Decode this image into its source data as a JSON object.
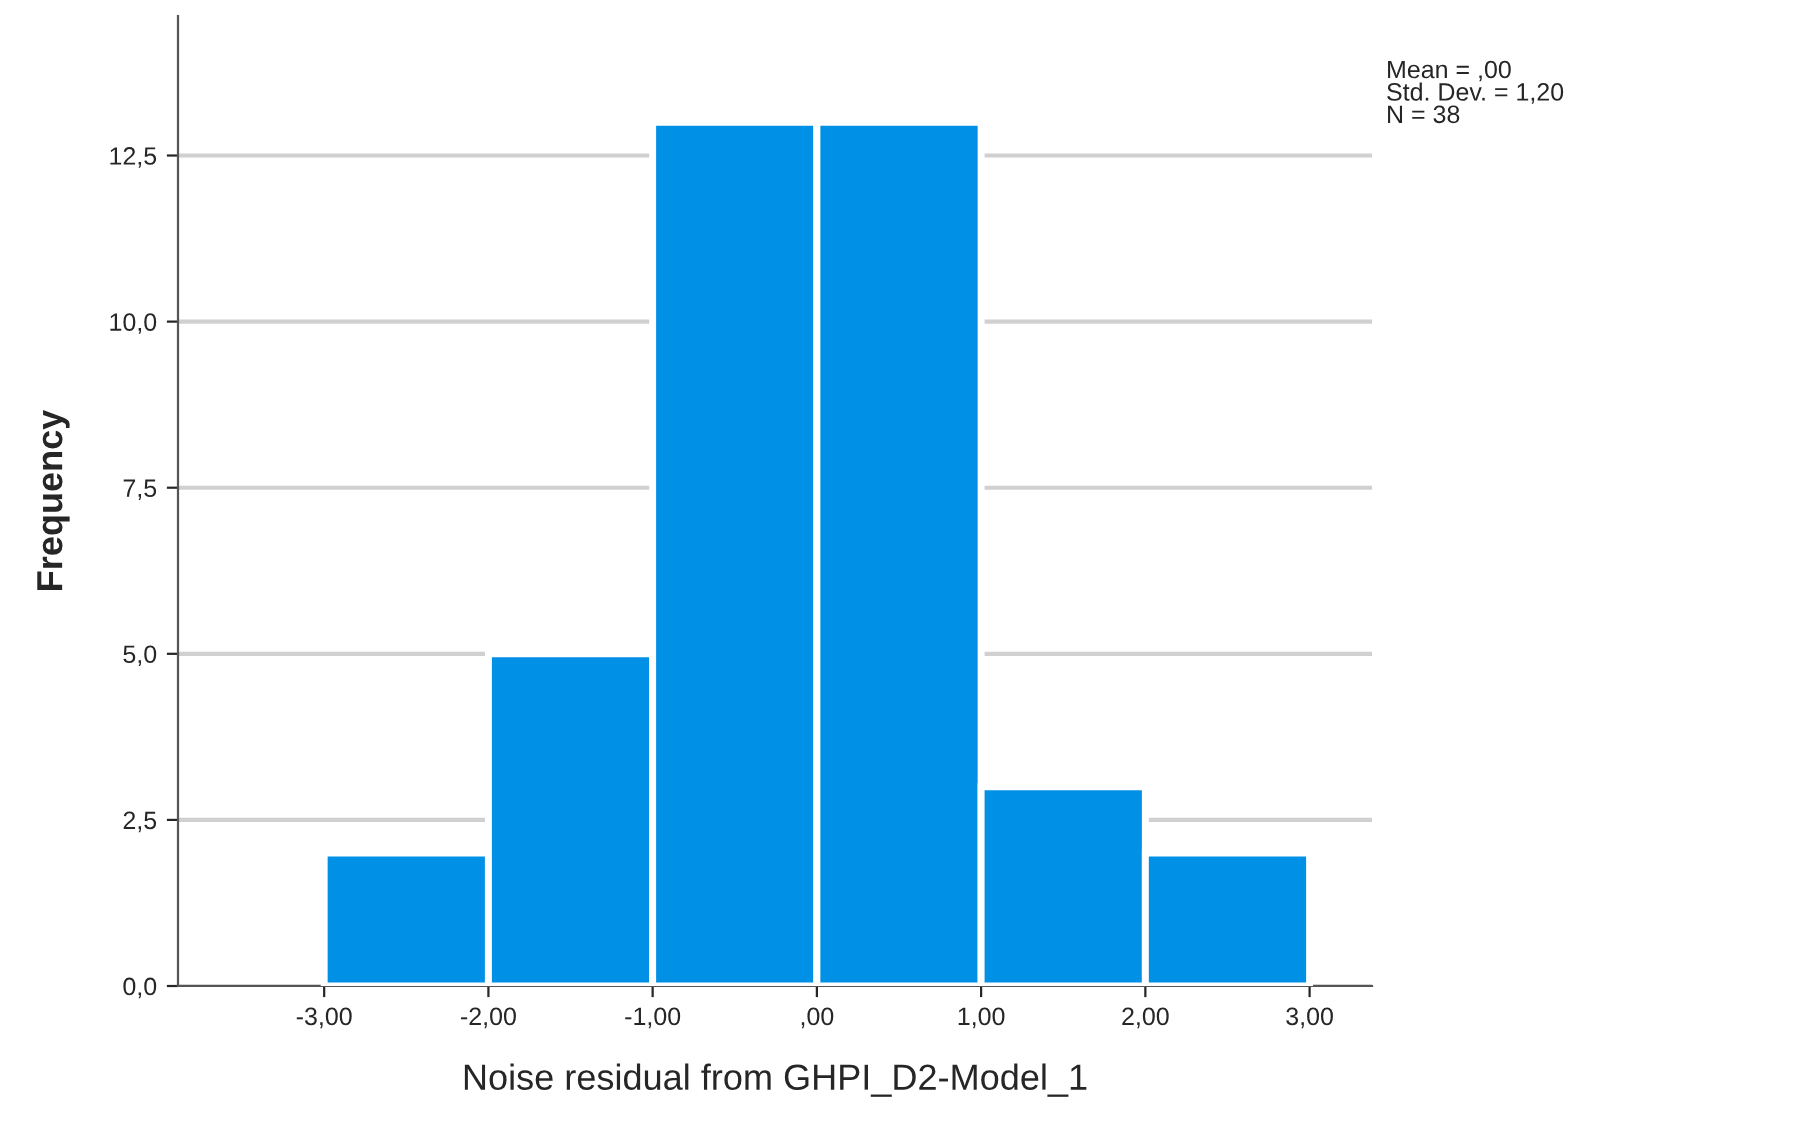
{
  "chart_data": {
    "type": "histogram",
    "xlabel": "Noise residual from GHPI_D2-Model_1",
    "ylabel": "Frequency",
    "bins": [
      -3,
      -2,
      -1,
      0,
      1,
      2,
      3
    ],
    "values": [
      2,
      5,
      13,
      13,
      3,
      2
    ],
    "color": "#0090e6",
    "xlim": [
      -3.89,
      3.38
    ],
    "ylim": [
      0,
      14.6
    ],
    "xticks": [
      {
        "value": -3,
        "label": "-3,00"
      },
      {
        "value": -2,
        "label": "-2,00"
      },
      {
        "value": -1,
        "label": "-1,00"
      },
      {
        "value": 0,
        "label": ",00"
      },
      {
        "value": 1,
        "label": "1,00"
      },
      {
        "value": 2,
        "label": "2,00"
      },
      {
        "value": 3,
        "label": "3,00"
      }
    ],
    "yticks": [
      {
        "value": 0,
        "label": "0,0"
      },
      {
        "value": 2.5,
        "label": "2,5"
      },
      {
        "value": 5,
        "label": "5,0"
      },
      {
        "value": 7.5,
        "label": "7,5"
      },
      {
        "value": 10,
        "label": "10,0"
      },
      {
        "value": 12.5,
        "label": "12,5"
      }
    ],
    "grid": "y",
    "annotations": [
      "Mean = ,00\nStd. Dev. = 1,20\nN = 38"
    ]
  }
}
